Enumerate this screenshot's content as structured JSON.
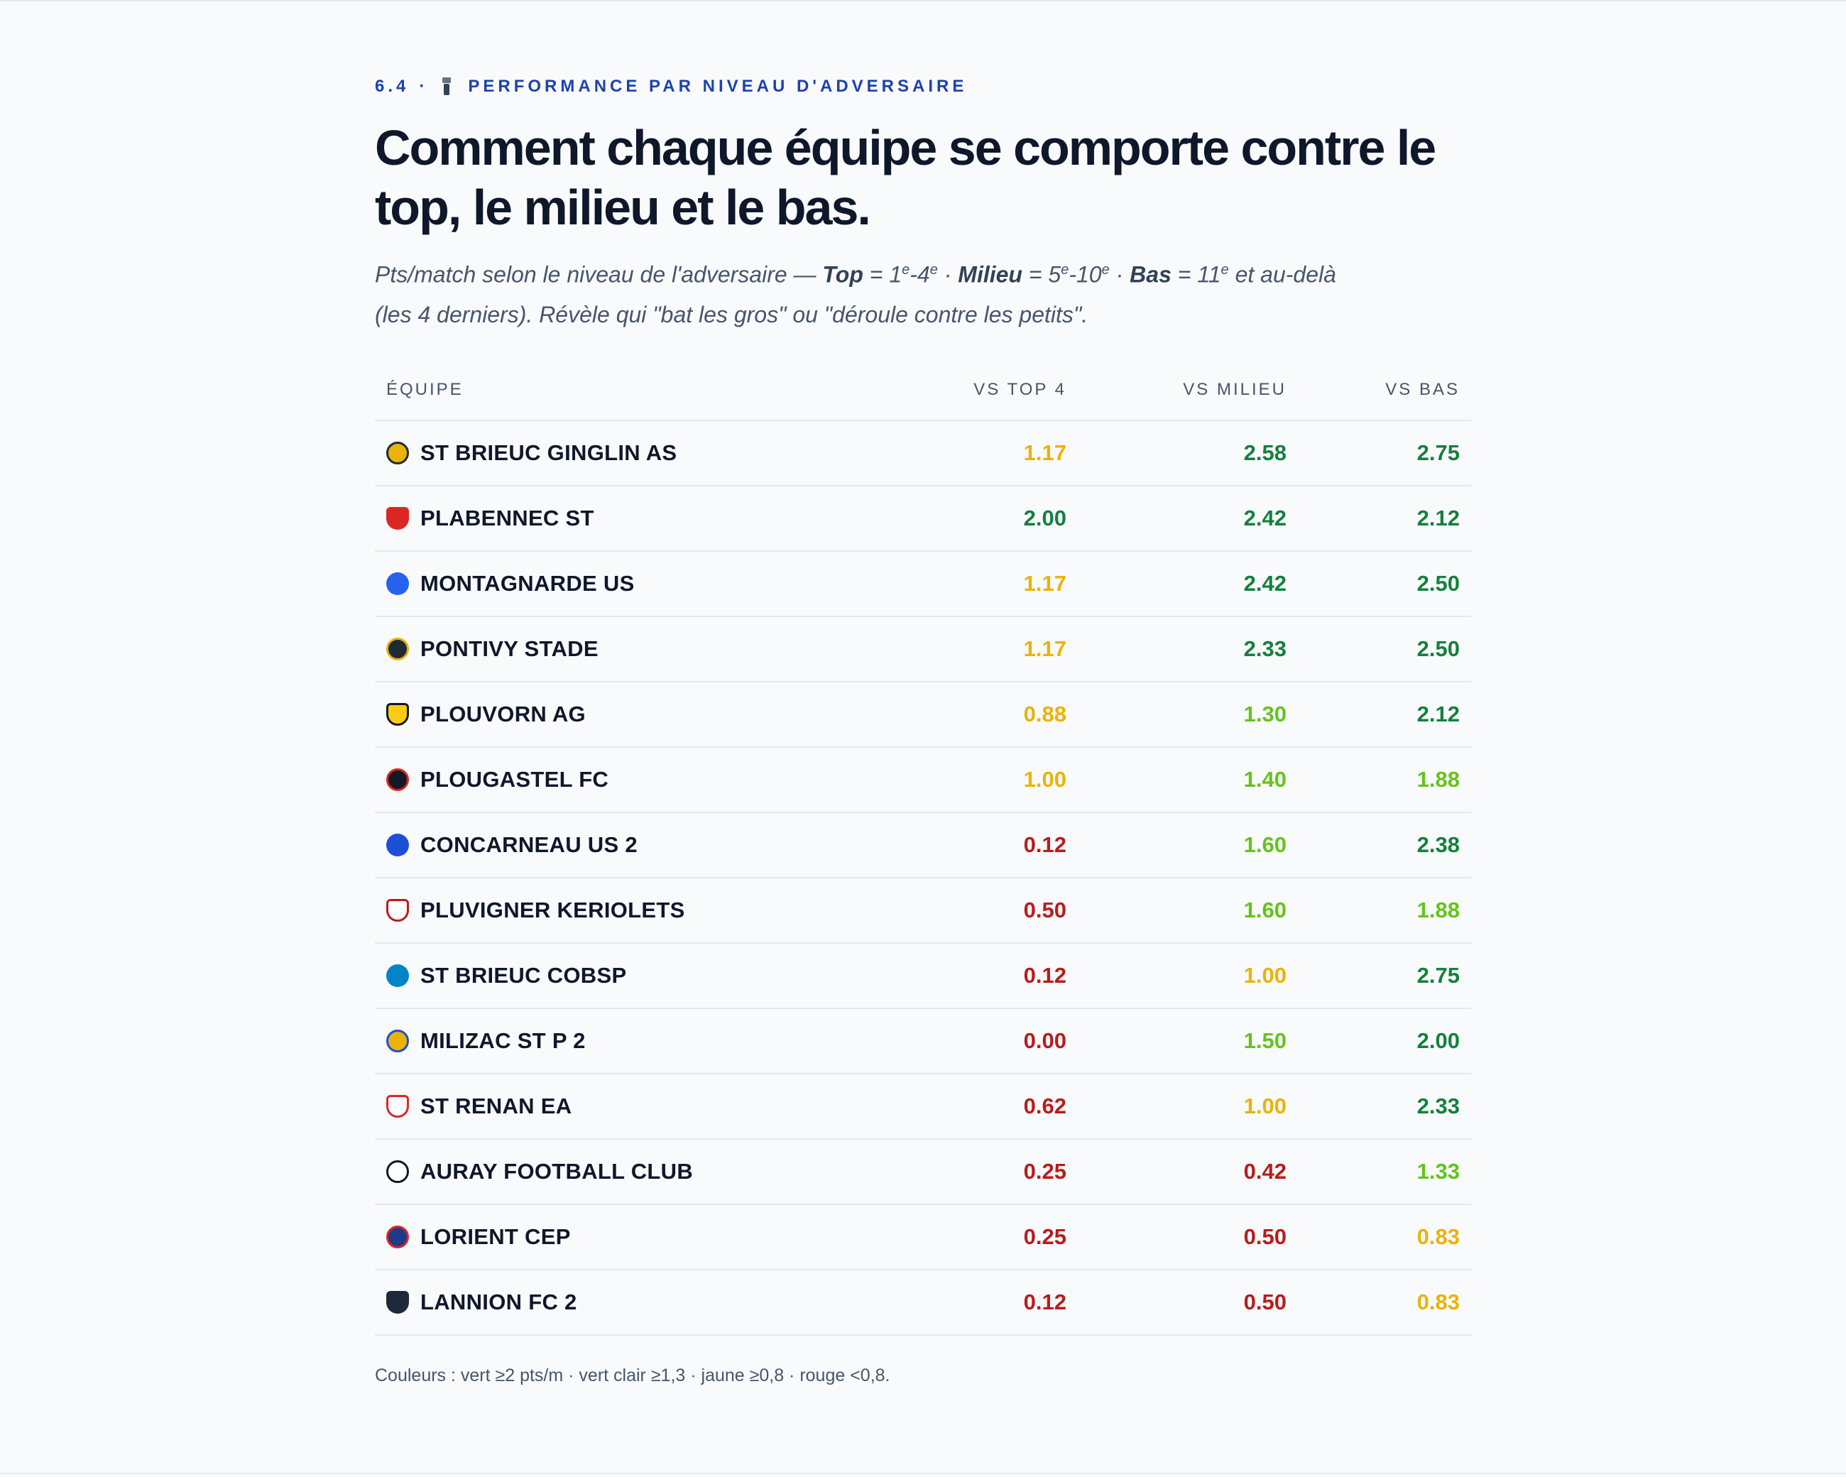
{
  "section": {
    "number": "6.4",
    "separator": "·",
    "eyebrow": "PERFORMANCE PAR NIVEAU D'ADVERSAIRE",
    "title": "Comment chaque équipe se comporte contre le top, le milieu et le bas.",
    "subtitle": {
      "p1": "Pts/match selon le niveau de l'adversaire — ",
      "top_label": "Top",
      "p2": " = 1",
      "sup1": "e",
      "p3": "-4",
      "sup2": "e",
      "p4": " · ",
      "mid_label": "Milieu",
      "p5": " = 5",
      "sup3": "e",
      "p6": "-10",
      "sup4": "e",
      "p7": " · ",
      "bas_label": "Bas",
      "p8": " = 11",
      "sup5": "e",
      "p9": " et au-delà (les 4 derniers). Révèle qui \"bat les gros\" ou \"déroule contre les petits\"."
    }
  },
  "table": {
    "headers": {
      "team": "ÉQUIPE",
      "top": "VS TOP 4",
      "mid": "VS MILIEU",
      "bas": "VS BAS"
    },
    "rows": [
      {
        "team": "ST BRIEUC GINGLIN AS",
        "icon": "ginglin-crest-icon",
        "top": "1.17",
        "mid": "2.58",
        "bas": "2.75"
      },
      {
        "team": "PLABENNEC ST",
        "icon": "plabennec-crest-icon",
        "top": "2.00",
        "mid": "2.42",
        "bas": "2.12"
      },
      {
        "team": "MONTAGNARDE US",
        "icon": "montagnarde-crest-icon",
        "top": "1.17",
        "mid": "2.42",
        "bas": "2.50"
      },
      {
        "team": "PONTIVY STADE",
        "icon": "pontivy-crest-icon",
        "top": "1.17",
        "mid": "2.33",
        "bas": "2.50"
      },
      {
        "team": "PLOUVORN AG",
        "icon": "plouvorn-crest-icon",
        "top": "0.88",
        "mid": "1.30",
        "bas": "2.12"
      },
      {
        "team": "PLOUGASTEL FC",
        "icon": "plougastel-crest-icon",
        "top": "1.00",
        "mid": "1.40",
        "bas": "1.88"
      },
      {
        "team": "CONCARNEAU US 2",
        "icon": "concarneau-crest-icon",
        "top": "0.12",
        "mid": "1.60",
        "bas": "2.38"
      },
      {
        "team": "PLUVIGNER KERIOLETS",
        "icon": "pluvigner-crest-icon",
        "top": "0.50",
        "mid": "1.60",
        "bas": "1.88"
      },
      {
        "team": "ST BRIEUC COBSP",
        "icon": "cobsp-crest-icon",
        "top": "0.12",
        "mid": "1.00",
        "bas": "2.75"
      },
      {
        "team": "MILIZAC ST P 2",
        "icon": "milizac-crest-icon",
        "top": "0.00",
        "mid": "1.50",
        "bas": "2.00"
      },
      {
        "team": "ST RENAN EA",
        "icon": "st-renan-crest-icon",
        "top": "0.62",
        "mid": "1.00",
        "bas": "2.33"
      },
      {
        "team": "AURAY FOOTBALL CLUB",
        "icon": "auray-crest-icon",
        "top": "0.25",
        "mid": "0.42",
        "bas": "1.33"
      },
      {
        "team": "LORIENT CEP",
        "icon": "lorient-cep-crest-icon",
        "top": "0.25",
        "mid": "0.50",
        "bas": "0.83"
      },
      {
        "team": "LANNION FC 2",
        "icon": "lannion-crest-icon",
        "top": "0.12",
        "mid": "0.50",
        "bas": "0.83"
      }
    ]
  },
  "colors": {
    "green": "#15803d",
    "light_green": "#65c31c",
    "yellow": "#eab308",
    "red": "#b91c1c",
    "accent": "#1e40af"
  },
  "footnote": "Couleurs : vert ≥2 pts/m · vert clair ≥1,3 · jaune ≥0,8 · rouge <0,8."
}
